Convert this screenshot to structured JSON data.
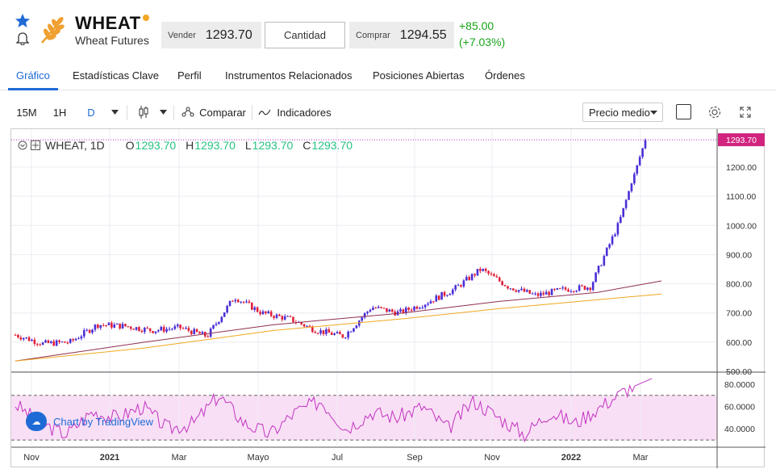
{
  "header": {
    "symbol": "WHEAT",
    "name": "Wheat Futures",
    "sell_label": "Vender",
    "sell_price": "1293.70",
    "quantity_label": "Cantidad",
    "buy_label": "Comprar",
    "buy_price": "1294.55",
    "change_abs": "+85.00",
    "change_pct": "(+7.03%)"
  },
  "tabs": [
    "Gráfico",
    "Estadísticas Clave",
    "Perfil",
    "Instrumentos Relacionados",
    "Posiciones Abiertas",
    "Órdenes"
  ],
  "toolbar": {
    "interval_15m": "15M",
    "interval_1h": "1H",
    "interval_d": "D",
    "compare": "Comparar",
    "indicators": "Indicadores",
    "price_mode": "Precio medio"
  },
  "legend": {
    "title": "WHEAT, 1D",
    "o_label": "O",
    "o": "1293.70",
    "h_label": "H",
    "h": "1293.70",
    "l_label": "L",
    "l": "1293.70",
    "c_label": "C",
    "c": "1293.70"
  },
  "tradingview_label": "Chart by TradingView",
  "colors": {
    "up": "#4b2ed6",
    "down": "#e0213a",
    "ma_fast": "#8e2f4f",
    "ma_slow": "#f0a81e",
    "rsi": "#c233c2",
    "rsi_band": "#f9dff5",
    "accent": "#1e6bd6",
    "positive": "#1aa31a"
  },
  "chart_data": {
    "type": "candlestick",
    "x_ticks": [
      "Nov",
      "2021",
      "Mar",
      "Mayo",
      "Jul",
      "Sep",
      "Nov",
      "2022",
      "Mar"
    ],
    "price_ticks": [
      "1200.00",
      "1100.00",
      "1000.00",
      "900.00",
      "800.00",
      "700.00",
      "600.00",
      "500.00"
    ],
    "price_range": [
      500,
      1330
    ],
    "last_price_label": "1293.70",
    "price_path": [
      [
        "Oct 2020",
        625
      ],
      [
        "Nov 2020",
        595
      ],
      [
        "Dic 2020",
        600
      ],
      [
        "Ene 2021",
        660
      ],
      [
        "Feb 2021",
        655
      ],
      [
        "Mar 2021",
        640
      ],
      [
        "Abr 2021",
        650
      ],
      [
        "Abr 2021b",
        620
      ],
      [
        "May 2021",
        755
      ],
      [
        "May 2021b",
        700
      ],
      [
        "Jun 2021",
        680
      ],
      [
        "Jul 2021",
        640
      ],
      [
        "Jul 2021b",
        620
      ],
      [
        "Ago 2021",
        720
      ],
      [
        "Sep 2021",
        700
      ],
      [
        "Oct 2021",
        735
      ],
      [
        "Oct 2021b",
        780
      ],
      [
        "Nov 2021",
        850
      ],
      [
        "Dic 2021",
        790
      ],
      [
        "Ene 2022",
        760
      ],
      [
        "Feb 2022",
        780
      ],
      [
        "Feb 2022b",
        790
      ],
      [
        "Mar 2022",
        1000
      ],
      [
        "Mar 2022b",
        1293.7
      ]
    ],
    "ma_fast_path": [
      [
        0,
        535
      ],
      [
        0.2,
        600
      ],
      [
        0.4,
        660
      ],
      [
        0.6,
        700
      ],
      [
        0.75,
        740
      ],
      [
        0.9,
        770
      ],
      [
        1.0,
        810
      ]
    ],
    "ma_slow_path": [
      [
        0,
        535
      ],
      [
        0.2,
        580
      ],
      [
        0.4,
        640
      ],
      [
        0.6,
        680
      ],
      [
        0.75,
        715
      ],
      [
        0.9,
        745
      ],
      [
        1.0,
        765
      ]
    ],
    "rsi_ticks": [
      "80.0000",
      "60.0000",
      "40.0000"
    ],
    "rsi_range": [
      25,
      90
    ],
    "rsi_band": [
      30,
      70
    ],
    "rsi_path": [
      [
        0,
        62
      ],
      [
        0.04,
        45
      ],
      [
        0.08,
        35
      ],
      [
        0.12,
        55
      ],
      [
        0.16,
        50
      ],
      [
        0.2,
        60
      ],
      [
        0.24,
        40
      ],
      [
        0.28,
        45
      ],
      [
        0.32,
        70
      ],
      [
        0.36,
        45
      ],
      [
        0.4,
        35
      ],
      [
        0.44,
        55
      ],
      [
        0.48,
        65
      ],
      [
        0.52,
        40
      ],
      [
        0.56,
        55
      ],
      [
        0.6,
        50
      ],
      [
        0.64,
        60
      ],
      [
        0.68,
        40
      ],
      [
        0.72,
        65
      ],
      [
        0.76,
        50
      ],
      [
        0.8,
        35
      ],
      [
        0.84,
        55
      ],
      [
        0.88,
        45
      ],
      [
        0.92,
        60
      ],
      [
        0.96,
        75
      ],
      [
        1.0,
        85
      ]
    ]
  }
}
